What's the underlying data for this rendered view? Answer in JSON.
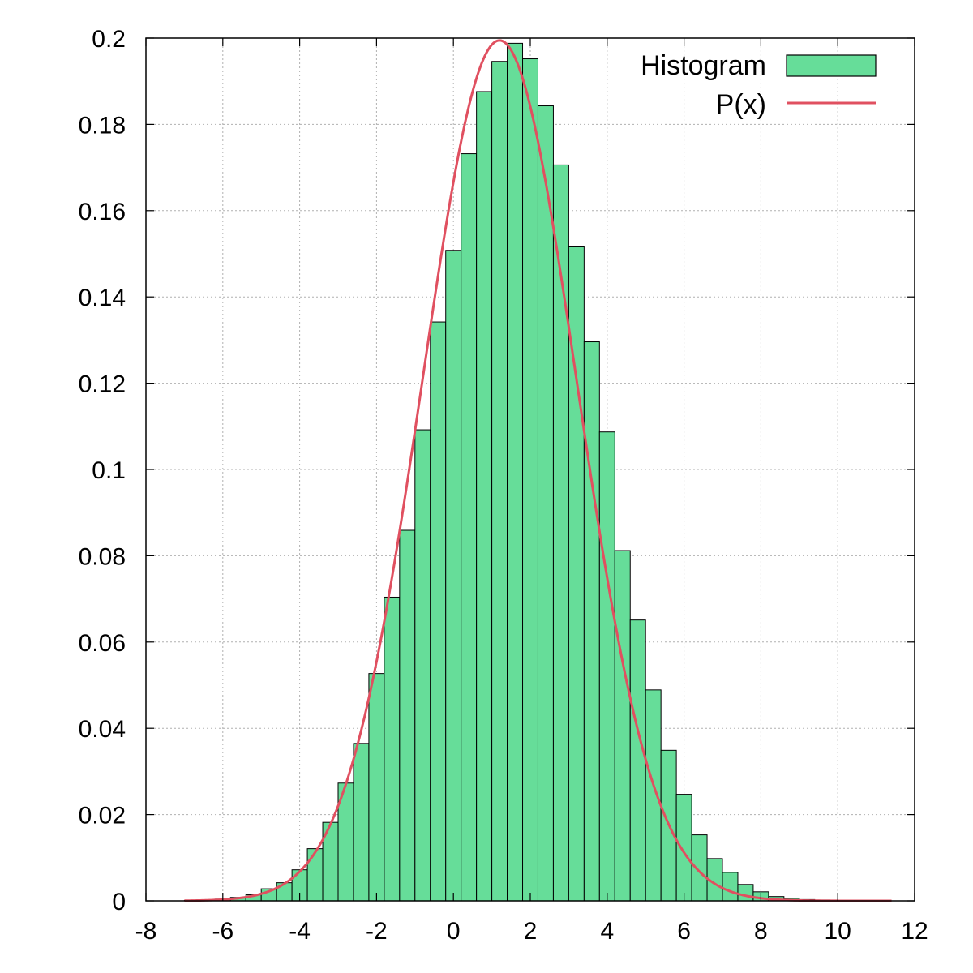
{
  "chart_data": {
    "type": "bar",
    "title": "",
    "xlabel": "",
    "ylabel": "",
    "xlim": [
      -8,
      12
    ],
    "ylim": [
      0,
      0.2
    ],
    "xticks": [
      -8,
      -6,
      -4,
      -2,
      0,
      2,
      4,
      6,
      8,
      10,
      12
    ],
    "yticks": [
      0,
      0.02,
      0.04,
      0.06,
      0.08,
      0.1,
      0.12,
      0.14,
      0.16,
      0.18,
      0.2
    ],
    "ytick_labels": [
      "0",
      "0.02",
      "0.04",
      "0.06",
      "0.08",
      "0.1",
      "0.12",
      "0.14",
      "0.16",
      "0.18",
      "0.2"
    ],
    "grid": true,
    "legend_position": "top-right",
    "bin_width": 0.4,
    "series": [
      {
        "name": "Histogram",
        "kind": "histogram",
        "color": "#66dd99",
        "bins_left": [
          -7.0,
          -6.6,
          -6.2,
          -5.8,
          -5.4,
          -5.0,
          -4.6,
          -4.2,
          -3.8,
          -3.4,
          -3.0,
          -2.6,
          -2.2,
          -1.8,
          -1.4,
          -1.0,
          -0.6,
          -0.2,
          0.2,
          0.6,
          1.0,
          1.4,
          1.8,
          2.2,
          2.6,
          3.0,
          3.4,
          3.8,
          4.2,
          4.6,
          5.0,
          5.4,
          5.8,
          6.2,
          6.6,
          7.0,
          7.4,
          7.8,
          8.2,
          8.6,
          9.0,
          9.4,
          9.8,
          10.2,
          10.6,
          11.0
        ],
        "values": [
          0.0001,
          0.0002,
          0.0004,
          0.0008,
          0.0014,
          0.0028,
          0.0042,
          0.0072,
          0.0121,
          0.0182,
          0.0273,
          0.0365,
          0.0527,
          0.0704,
          0.0859,
          0.1092,
          0.1342,
          0.1508,
          0.1732,
          0.1876,
          0.1946,
          0.1988,
          0.1952,
          0.1843,
          0.1706,
          0.1516,
          0.1296,
          0.1087,
          0.0812,
          0.0651,
          0.0489,
          0.0349,
          0.0247,
          0.0153,
          0.0098,
          0.0066,
          0.0038,
          0.0021,
          0.001,
          0.0006,
          0.0003,
          0.0002,
          0.0001,
          0.0001,
          0.0001,
          0.0
        ]
      },
      {
        "name": "P(x)",
        "kind": "line",
        "color": "#e05060",
        "mean": 1.2,
        "sigma": 2.0,
        "x_range": [
          -7.0,
          11.4
        ]
      }
    ]
  }
}
